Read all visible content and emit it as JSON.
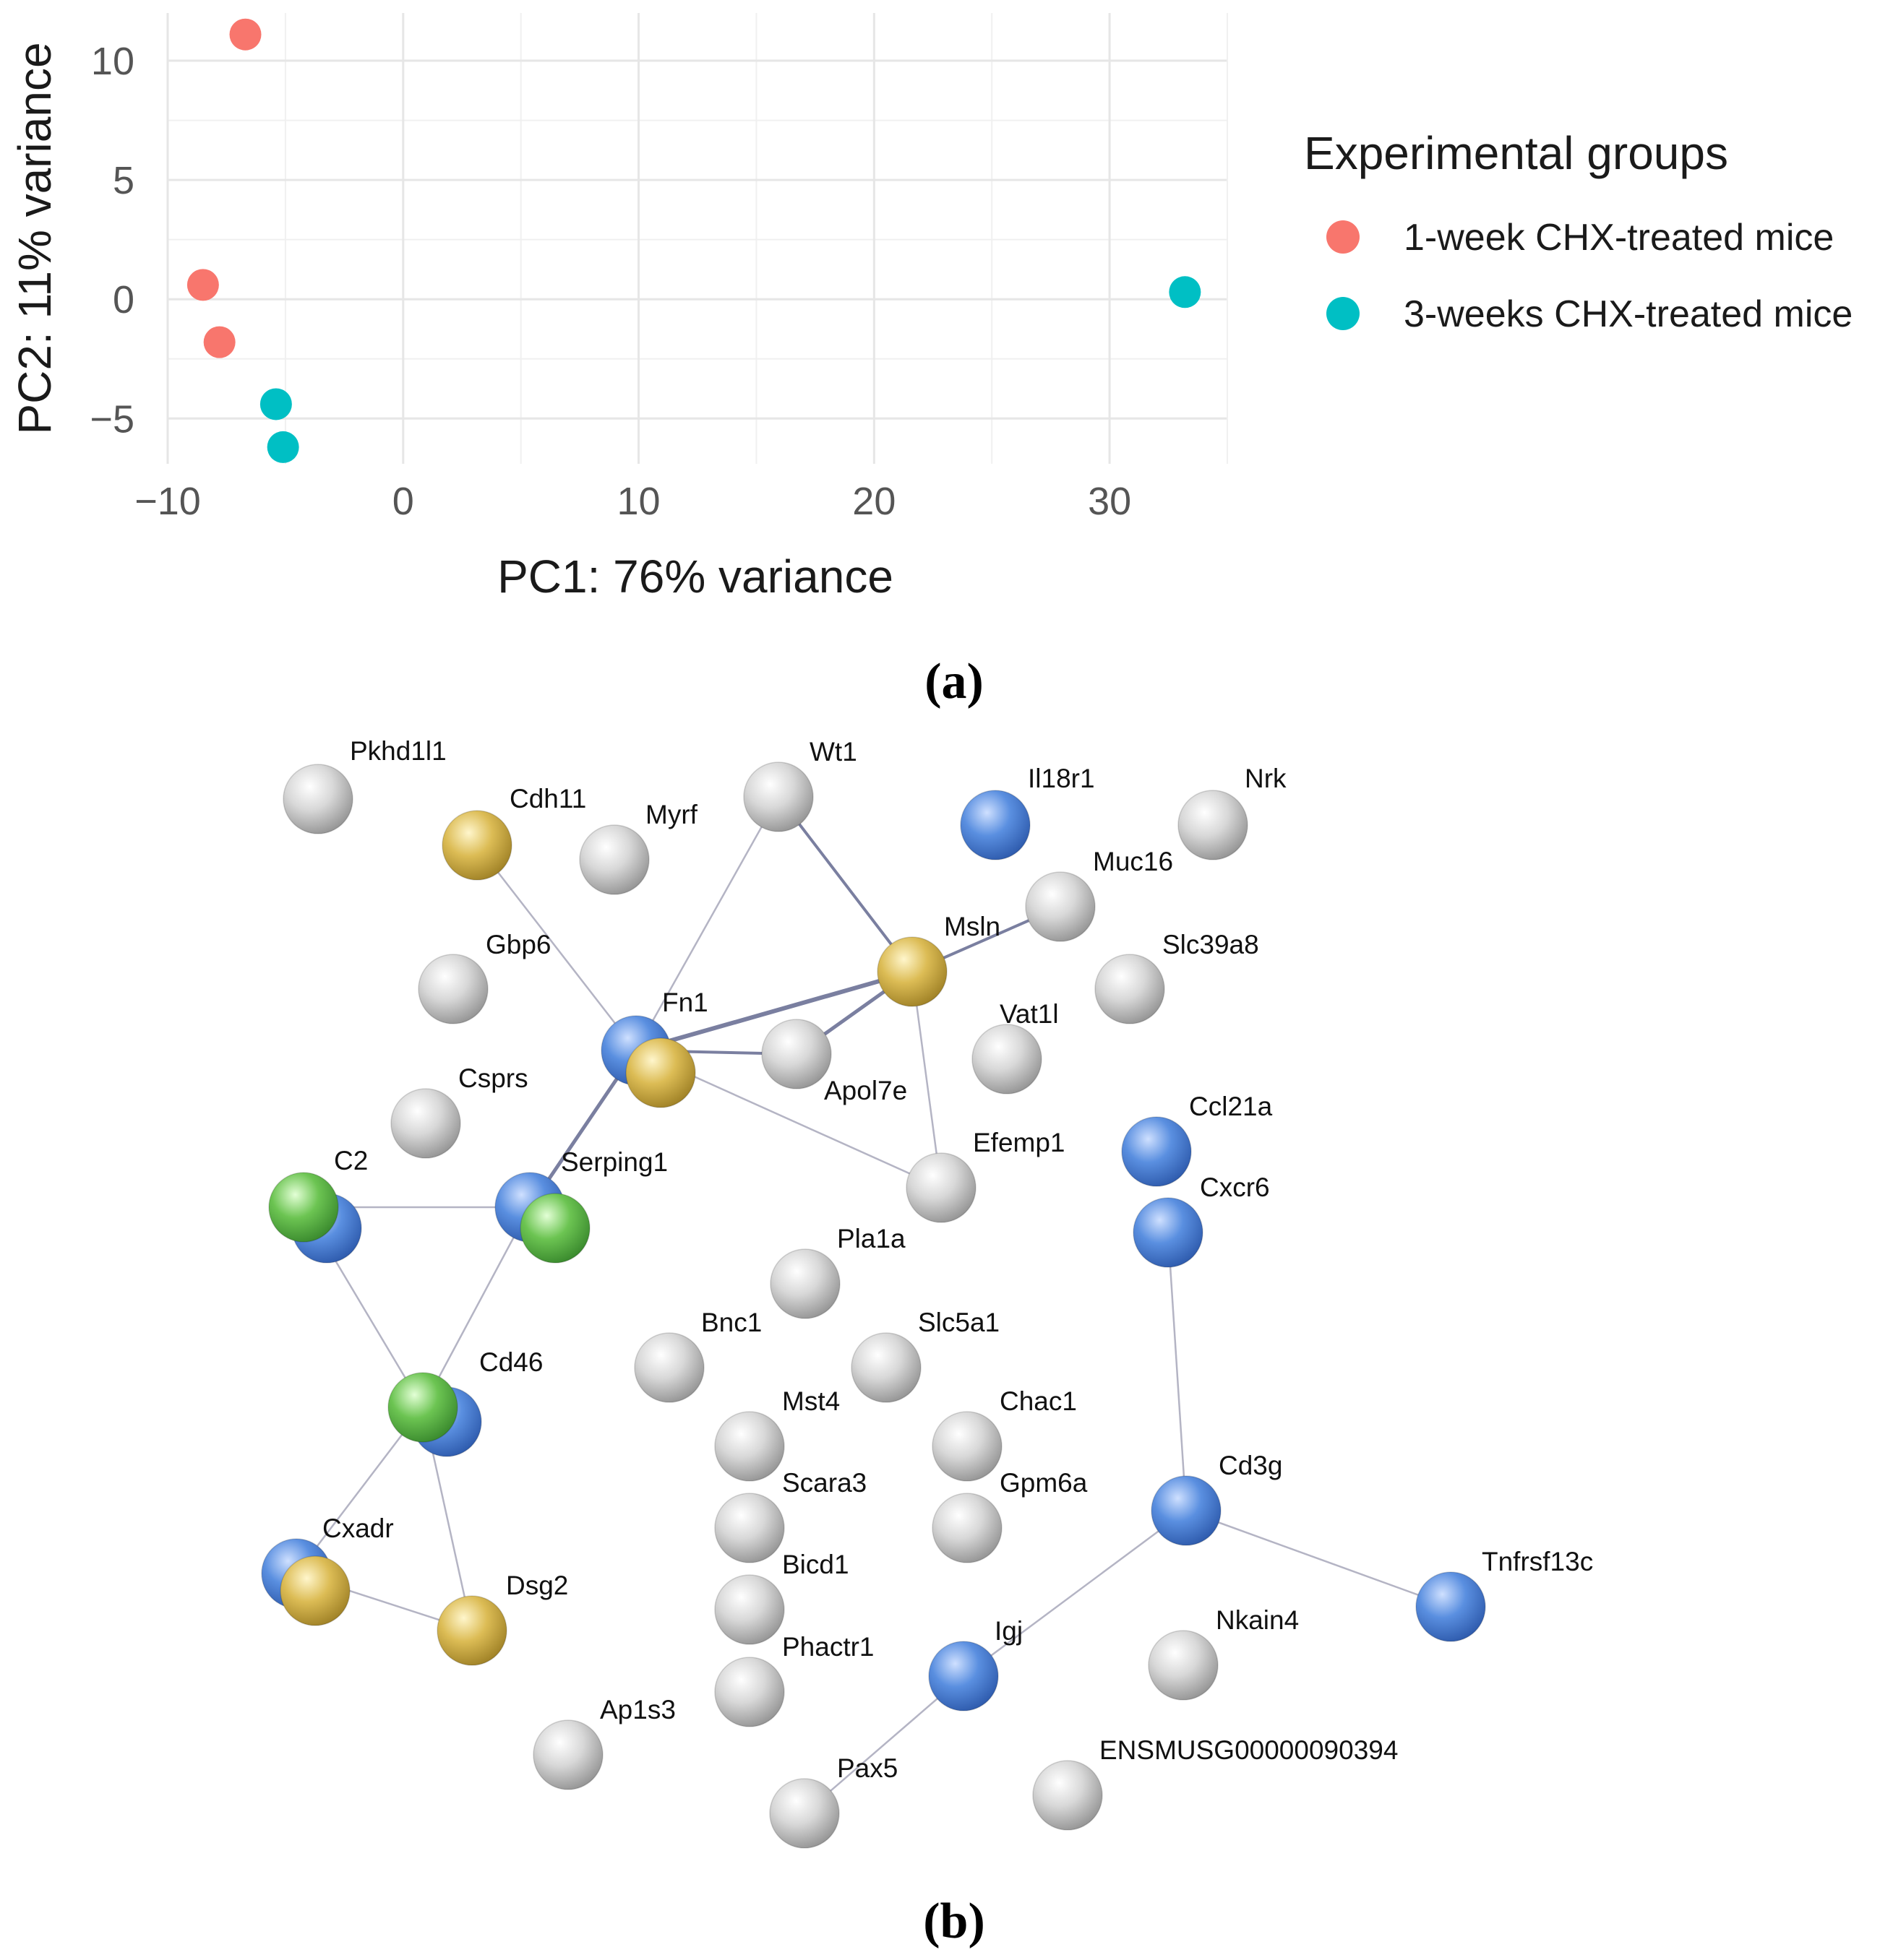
{
  "chart_data": [
    {
      "type": "scatter",
      "panel_label": "(a)",
      "title": "",
      "xlabel": "PC1: 76% variance",
      "ylabel": "PC2: 11% variance",
      "xlim": [
        -10,
        35
      ],
      "ylim": [
        -6.9,
        12
      ],
      "xticks": [
        -10,
        0,
        10,
        20,
        30
      ],
      "xtick_labels": [
        "−10",
        "0",
        "10",
        "20",
        "30"
      ],
      "yticks": [
        -5,
        0,
        5,
        10
      ],
      "ytick_labels": [
        "−5",
        "0",
        "5",
        "10"
      ],
      "grid": true,
      "legend": {
        "title": "Experimental groups",
        "position": "right"
      },
      "series": [
        {
          "name": "1-week CHX-treated mice",
          "color": "#F8766D",
          "points": [
            [
              -6.7,
              11.1
            ],
            [
              -8.5,
              0.6
            ],
            [
              -7.8,
              -1.8
            ]
          ]
        },
        {
          "name": "3-weeks CHX-treated mice",
          "color": "#00BFC4",
          "points": [
            [
              -5.4,
              -4.4
            ],
            [
              -5.1,
              -6.2
            ],
            [
              33.2,
              0.3
            ]
          ]
        }
      ]
    },
    {
      "type": "network",
      "panel_label": "(b)",
      "node_colors": {
        "gray": "#c8c8c8",
        "blue": "#4a7fd4",
        "yellow": "#d9b64a",
        "green": "#5db84a"
      },
      "nodes": [
        {
          "label": "Pkhd1l1",
          "color": "gray"
        },
        {
          "label": "Cdh11",
          "color": "yellow"
        },
        {
          "label": "Myrf",
          "color": "gray"
        },
        {
          "label": "Wt1",
          "color": "gray"
        },
        {
          "label": "Il18r1",
          "color": "blue"
        },
        {
          "label": "Nrk",
          "color": "gray"
        },
        {
          "label": "Muc16",
          "color": "gray"
        },
        {
          "label": "Msln",
          "color": "yellow"
        },
        {
          "label": "Gbp6",
          "color": "gray"
        },
        {
          "label": "Slc39a8",
          "color": "gray"
        },
        {
          "label": "Fn1",
          "color": "blue"
        },
        {
          "label": "Apol7e",
          "color": "gray"
        },
        {
          "label": "Vat1l",
          "color": "gray"
        },
        {
          "label": "Csprs",
          "color": "gray"
        },
        {
          "label": "Efemp1",
          "color": "gray"
        },
        {
          "label": "Ccl21a",
          "color": "blue"
        },
        {
          "label": "C2",
          "color": "green"
        },
        {
          "label": "Serping1",
          "color": "blue"
        },
        {
          "label": "Cxcr6",
          "color": "blue"
        },
        {
          "label": "Pla1a",
          "color": "gray"
        },
        {
          "label": "Bnc1",
          "color": "gray"
        },
        {
          "label": "Slc5a1",
          "color": "gray"
        },
        {
          "label": "Cd46",
          "color": "green"
        },
        {
          "label": "Mst4",
          "color": "gray"
        },
        {
          "label": "Chac1",
          "color": "gray"
        },
        {
          "label": "Scara3",
          "color": "gray"
        },
        {
          "label": "Gpm6a",
          "color": "gray"
        },
        {
          "label": "Cd3g",
          "color": "blue"
        },
        {
          "label": "Cxadr",
          "color": "blue"
        },
        {
          "label": "Bicd1",
          "color": "gray"
        },
        {
          "label": "Tnfrsf13c",
          "color": "blue"
        },
        {
          "label": "Dsg2",
          "color": "yellow"
        },
        {
          "label": "Nkain4",
          "color": "gray"
        },
        {
          "label": "Igj",
          "color": "blue"
        },
        {
          "label": "Phactr1",
          "color": "gray"
        },
        {
          "label": "Ap1s3",
          "color": "gray"
        },
        {
          "label": "ENSMUSG00000090394",
          "color": "gray"
        },
        {
          "label": "Pax5",
          "color": "gray"
        }
      ],
      "edges": [
        [
          "Cdh11",
          "Fn1"
        ],
        [
          "Wt1",
          "Fn1"
        ],
        [
          "Wt1",
          "Msln"
        ],
        [
          "Muc16",
          "Msln"
        ],
        [
          "Fn1",
          "Msln"
        ],
        [
          "Fn1",
          "Apol7e"
        ],
        [
          "Apol7e",
          "Msln"
        ],
        [
          "Msln",
          "Efemp1"
        ],
        [
          "Fn1",
          "Efemp1"
        ],
        [
          "Fn1",
          "Serping1"
        ],
        [
          "C2",
          "Serping1"
        ],
        [
          "C2",
          "Cd46"
        ],
        [
          "Serping1",
          "Cd46"
        ],
        [
          "Cd46",
          "Cxadr"
        ],
        [
          "Cd46",
          "Dsg2"
        ],
        [
          "Cxadr",
          "Dsg2"
        ],
        [
          "Cxcr6",
          "Cd3g"
        ],
        [
          "Cd3g",
          "Igj"
        ],
        [
          "Cd3g",
          "Tnfrsf13c"
        ],
        [
          "Igj",
          "Pax5"
        ]
      ]
    }
  ]
}
